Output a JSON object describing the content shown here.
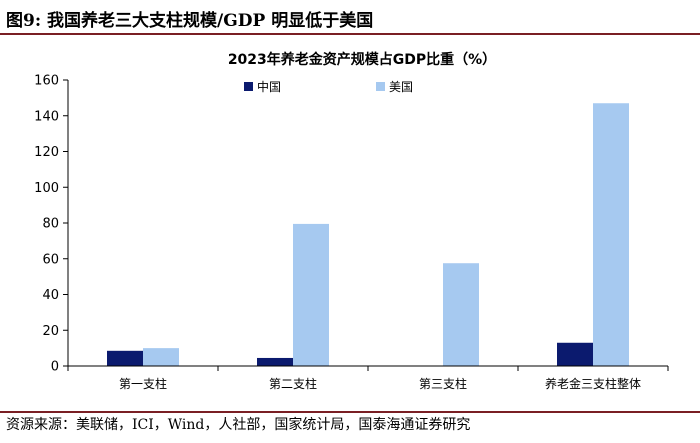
{
  "figure": {
    "label": "图9:",
    "title": "我国养老三大支柱规模/GDP 明显低于美国",
    "source": "资源来源：美联储，ICI，Wind，人社部，国家统计局，国泰海通证券研究"
  },
  "chart_data": {
    "type": "bar",
    "title": "2023年养老金资产规模占GDP比重（%）",
    "categories": [
      "第一支柱",
      "第二支柱",
      "第三支柱",
      "养老金三支柱整体"
    ],
    "series": [
      {
        "name": "中国",
        "values": [
          8.5,
          4.5,
          0,
          13.0
        ]
      },
      {
        "name": "美国",
        "values": [
          10.0,
          79.5,
          57.5,
          147.0
        ]
      }
    ],
    "ylim": [
      0,
      160
    ],
    "yticks": [
      "0",
      "20",
      "40",
      "60",
      "80",
      "100",
      "120",
      "140",
      "160"
    ],
    "grid": false,
    "legend_position": "top",
    "colors": {
      "中国": "#0b1a6e",
      "美国": "#a6c9f0"
    }
  }
}
